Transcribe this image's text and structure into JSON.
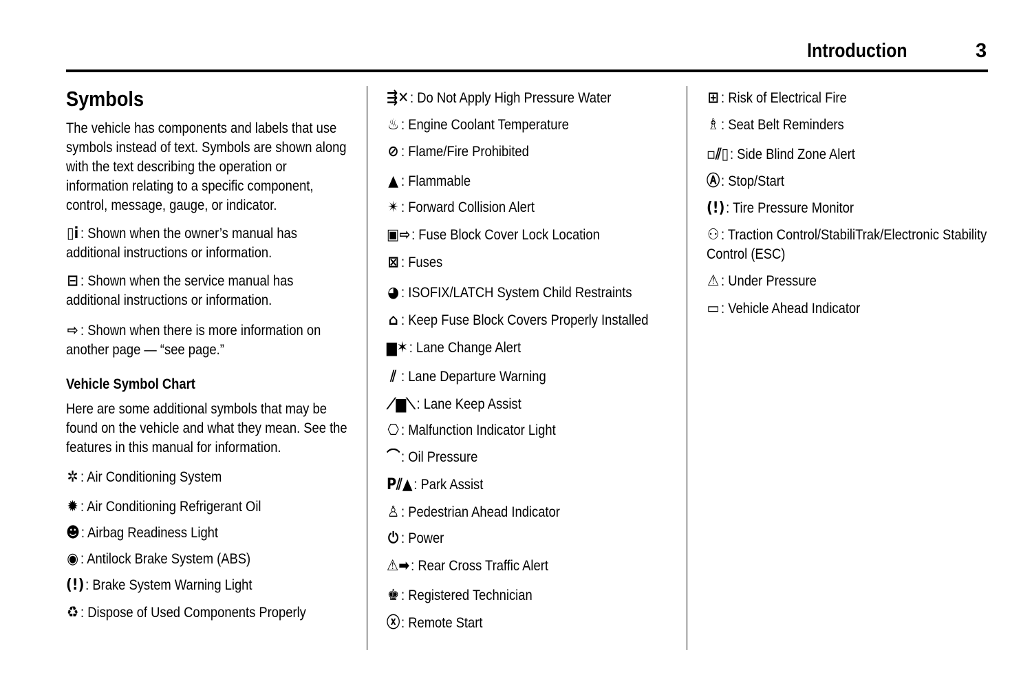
{
  "header": {
    "section": "Introduction",
    "page_number": "3"
  },
  "col1": {
    "title": "Symbols",
    "intro": "The vehicle has components and labels that use symbols instead of text. Symbols are shown along with the text describing the operation or information relating to a specific component, control, message, gauge, or indicator.",
    "notes": [
      {
        "icon": "owners-manual-icon",
        "text": ": Shown when the owner’s manual has additional instructions or information."
      },
      {
        "icon": "service-manual-icon",
        "text": ": Shown when the service manual has additional instructions or information."
      },
      {
        "icon": "see-page-arrow-icon",
        "text": ": Shown when there is more information on another page — “see page.”"
      }
    ],
    "chart_heading": "Vehicle Symbol Chart",
    "chart_intro": "Here are some additional symbols that may be found on the vehicle and what they mean. See the features in this manual for information.",
    "items": [
      {
        "icon": "air-conditioning-icon",
        "text": ": Air Conditioning System"
      },
      {
        "icon": "refrigerant-oil-icon",
        "text": ": Air Conditioning Refrigerant Oil"
      },
      {
        "icon": "airbag-icon",
        "text": ": Airbag Readiness Light"
      },
      {
        "icon": "abs-icon",
        "text": ": Antilock Brake System (ABS)"
      },
      {
        "icon": "brake-warning-icon",
        "text": ": Brake System Warning Light"
      },
      {
        "icon": "dispose-icon",
        "text": ": Dispose of Used Components Properly"
      }
    ]
  },
  "col2": {
    "items": [
      {
        "icon": "no-high-pressure-water-icon",
        "text": ": Do Not Apply High Pressure Water"
      },
      {
        "icon": "coolant-temperature-icon",
        "text": ": Engine Coolant Temperature"
      },
      {
        "icon": "flame-prohibited-icon",
        "text": ": Flame/Fire Prohibited"
      },
      {
        "icon": "flammable-icon",
        "text": ": Flammable"
      },
      {
        "icon": "forward-collision-icon",
        "text": ": Forward Collision Alert"
      },
      {
        "icon": "fuse-cover-lock-icon",
        "text": ": Fuse Block Cover Lock Location"
      },
      {
        "icon": "fuses-icon",
        "text": ": Fuses"
      },
      {
        "icon": "isofix-icon",
        "text": ": ISOFIX/LATCH System Child Restraints"
      },
      {
        "icon": "fuse-cover-installed-icon",
        "text": ": Keep Fuse Block Covers Properly Installed"
      },
      {
        "icon": "lane-change-icon",
        "text": ": Lane Change Alert"
      },
      {
        "icon": "lane-departure-icon",
        "text": ": Lane Departure Warning"
      },
      {
        "icon": "lane-keep-icon",
        "text": ": Lane Keep Assist"
      },
      {
        "icon": "engine-malfunction-icon",
        "text": ": Malfunction Indicator Light"
      },
      {
        "icon": "oil-pressure-icon",
        "text": ": Oil Pressure"
      },
      {
        "icon": "park-assist-icon",
        "text": ": Park Assist"
      },
      {
        "icon": "pedestrian-icon",
        "text": ": Pedestrian Ahead Indicator"
      },
      {
        "icon": "power-icon",
        "text": ": Power"
      },
      {
        "icon": "rear-cross-traffic-icon",
        "text": ": Rear Cross Traffic Alert"
      },
      {
        "icon": "technician-icon",
        "text": ": Registered Technician"
      },
      {
        "icon": "remote-start-icon",
        "text": ": Remote Start"
      }
    ]
  },
  "col3": {
    "items": [
      {
        "icon": "electrical-fire-icon",
        "text": ": Risk of Electrical Fire"
      },
      {
        "icon": "seat-belt-icon",
        "text": ": Seat Belt Reminders"
      },
      {
        "icon": "side-blind-zone-icon",
        "text": ": Side Blind Zone Alert"
      },
      {
        "icon": "stop-start-icon",
        "text": ": Stop/Start"
      },
      {
        "icon": "tire-pressure-icon",
        "text": ": Tire Pressure Monitor"
      },
      {
        "icon": "traction-control-icon",
        "text": ": Traction Control/StabiliTrak/Electronic Stability Control (ESC)"
      },
      {
        "icon": "under-pressure-icon",
        "text": ": Under Pressure"
      },
      {
        "icon": "vehicle-ahead-icon",
        "text": ": Vehicle Ahead Indicator"
      }
    ]
  }
}
